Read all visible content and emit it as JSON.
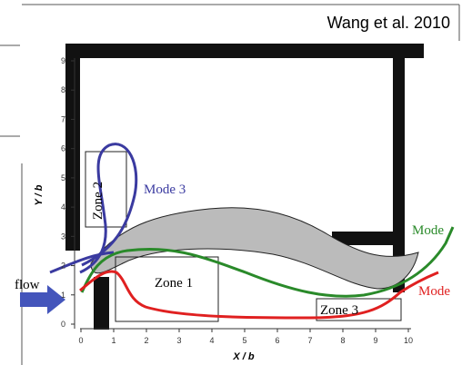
{
  "credit": "Wang et al. 2010",
  "axes": {
    "xlabel": "X / b",
    "ylabel": "Y / b",
    "xticks": [
      0,
      1,
      2,
      3,
      4,
      5,
      6,
      7,
      8,
      9,
      10
    ],
    "yticks": [
      0,
      1,
      2,
      3,
      4,
      5,
      6,
      7,
      8,
      9
    ]
  },
  "labels": {
    "mode3": "Mode  3",
    "zone2": "Zone 2",
    "zone1": "Zone 1",
    "zone3": "Zone 3",
    "mode_green": "Mode",
    "mode_red": "Mode",
    "flow": "flow"
  }
}
